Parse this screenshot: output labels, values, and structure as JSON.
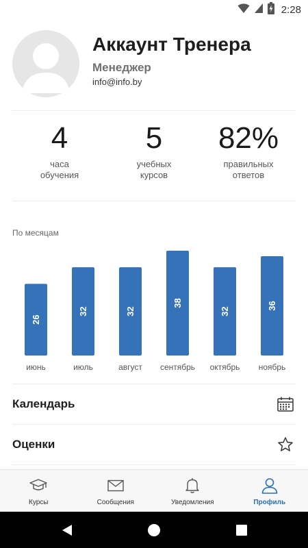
{
  "status_bar": {
    "time": "2:28",
    "icons": [
      "wifi-icon",
      "signal-icon",
      "battery-charging-icon"
    ]
  },
  "profile": {
    "name": "Аккаунт Тренера",
    "role": "Менеджер",
    "email": "info@info.by",
    "avatar_icon": "user-placeholder-icon"
  },
  "stats": [
    {
      "value": "4",
      "label_line1": "часа",
      "label_line2": "обучения"
    },
    {
      "value": "5",
      "label_line1": "учебных",
      "label_line2": "курсов"
    },
    {
      "value": "82%",
      "label_line1": "правильных",
      "label_line2": "ответов"
    }
  ],
  "chart_title": "По месяцам",
  "chart_data": {
    "type": "bar",
    "categories": [
      "июнь",
      "июль",
      "август",
      "сентябрь",
      "октябрь",
      "ноябрь"
    ],
    "values": [
      26,
      32,
      32,
      38,
      32,
      36
    ],
    "color": "#3572b8",
    "title": "По месяцам",
    "xlabel": "",
    "ylabel": "",
    "grid": false
  },
  "menu": {
    "calendar": {
      "label": "Календарь",
      "icon": "calendar-icon"
    },
    "grades": {
      "label": "Оценки",
      "icon": "star-icon"
    }
  },
  "bottom_nav": [
    {
      "label": "Курсы",
      "icon": "graduation-cap-icon",
      "active": false
    },
    {
      "label": "Сообщения",
      "icon": "envelope-icon",
      "active": false
    },
    {
      "label": "Уведомления",
      "icon": "bell-icon",
      "active": false
    },
    {
      "label": "Профиль",
      "icon": "user-icon",
      "active": true
    }
  ],
  "colors": {
    "accent": "#2a6fb5",
    "bar": "#3572b8"
  }
}
